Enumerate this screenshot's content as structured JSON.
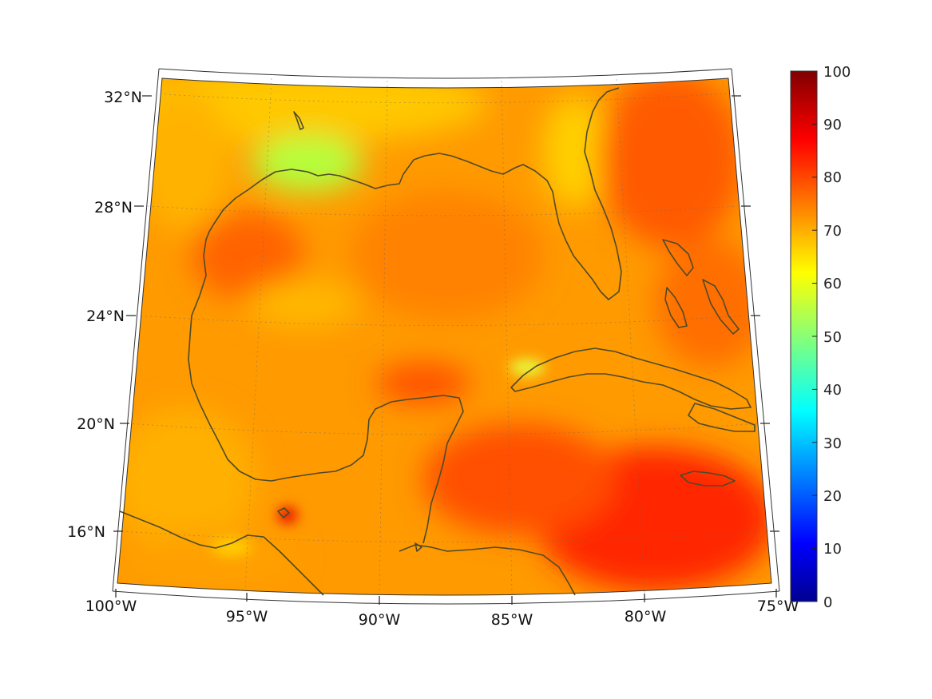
{
  "map": {
    "lon_labels": [
      "100°W",
      "95°W",
      "90°W",
      "85°W",
      "80°W",
      "75°W"
    ],
    "lat_labels": [
      "32°N",
      "28°N",
      "24°N",
      "20°N",
      "16°N"
    ],
    "projection": "conic",
    "extent": {
      "lon": [
        -100,
        -75
      ],
      "lat": [
        14,
        33
      ]
    },
    "graticule": "dotted",
    "coastline_color": "#4e4a2a"
  },
  "colorbar": {
    "colormap": "jet",
    "range": [
      0,
      100
    ],
    "tick_labels": [
      "100",
      "90",
      "80",
      "70",
      "60",
      "50",
      "40",
      "30",
      "20",
      "10",
      "0"
    ]
  },
  "field": {
    "dominant_value_range": [
      60,
      88
    ],
    "high_region": "Caribbean Sea south of Cuba and Jamaica",
    "low_region": "Louisiana coast near 93°W 30°N"
  }
}
